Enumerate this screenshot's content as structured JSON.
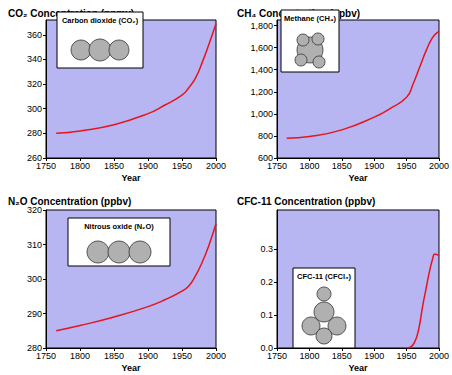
{
  "chart_data": [
    {
      "type": "line",
      "title": "CO₂ Concentration (ppmv)",
      "annotation": "Carbon dioxide (CO₂)",
      "xlabel": "Year",
      "x": [
        1765,
        1800,
        1850,
        1900,
        1925,
        1950,
        1960,
        1970,
        1980,
        1990,
        2000
      ],
      "series": [
        {
          "color": "#e8141c",
          "values": [
            280,
            282,
            287,
            296,
            303,
            311,
            317,
            325,
            338,
            353,
            369
          ]
        }
      ],
      "xlim": [
        1750,
        2000
      ],
      "xticks": [
        1750,
        1800,
        1850,
        1900,
        1950,
        2000
      ],
      "ylim": [
        260,
        372
      ],
      "yticks": [
        260,
        280,
        300,
        320,
        340,
        360
      ],
      "grid": false
    },
    {
      "type": "line",
      "title": "CH₄ Concentration (ppbv)",
      "annotation": "Methane (CH₄)",
      "xlabel": "Year",
      "x": [
        1765,
        1800,
        1850,
        1900,
        1925,
        1950,
        1960,
        1970,
        1980,
        1990,
        2000
      ],
      "series": [
        {
          "color": "#e8141c",
          "values": [
            780,
            795,
            855,
            970,
            1050,
            1150,
            1270,
            1420,
            1570,
            1690,
            1750
          ]
        }
      ],
      "xlim": [
        1750,
        2000
      ],
      "xticks": [
        1750,
        1800,
        1850,
        1900,
        1950,
        2000
      ],
      "ylim": [
        600,
        1850
      ],
      "yticks": [
        600,
        800,
        {
          "value": 1000,
          "label": "1,000"
        },
        {
          "value": 1200,
          "label": "1,200"
        },
        {
          "value": 1400,
          "label": "1,400"
        },
        {
          "value": 1600,
          "label": "1,600"
        },
        {
          "value": 1800,
          "label": "1,800"
        }
      ],
      "grid": false
    },
    {
      "type": "line",
      "title": "N₂O Concentration (ppbv)",
      "annotation": "Nitrous oxide (N₂O)",
      "xlabel": "Year",
      "x": [
        1765,
        1800,
        1850,
        1900,
        1925,
        1950,
        1960,
        1970,
        1980,
        1990,
        2000
      ],
      "series": [
        {
          "color": "#e8141c",
          "values": [
            285,
            286.5,
            289,
            292,
            294,
            296.5,
            298,
            301,
            305,
            310,
            316
          ]
        }
      ],
      "xlim": [
        1750,
        2000
      ],
      "xticks": [
        1750,
        1800,
        1850,
        1900,
        1950,
        2000
      ],
      "ylim": [
        280,
        320
      ],
      "yticks": [
        280,
        290,
        300,
        310,
        320
      ],
      "grid": false
    },
    {
      "type": "line",
      "title": "CFC-11 Concentration (ppbv)",
      "annotation": "CFC-11 (CFCl₃)",
      "xlabel": "Year",
      "x": [
        1950,
        1955,
        1960,
        1965,
        1970,
        1975,
        1980,
        1985,
        1990,
        1993,
        1995,
        2000
      ],
      "series": [
        {
          "color": "#e8141c",
          "values": [
            0,
            0.002,
            0.01,
            0.03,
            0.07,
            0.13,
            0.18,
            0.23,
            0.27,
            0.285,
            0.285,
            0.28
          ]
        }
      ],
      "xlim": [
        1750,
        2000
      ],
      "xticks": [
        1750,
        1800,
        1850,
        1900,
        1950,
        2000
      ],
      "ylim": [
        0,
        0.42
      ],
      "yticks": [
        {
          "value": 0,
          "label": "0.0"
        },
        0.1,
        0.2,
        0.3
      ],
      "grid": false
    }
  ]
}
